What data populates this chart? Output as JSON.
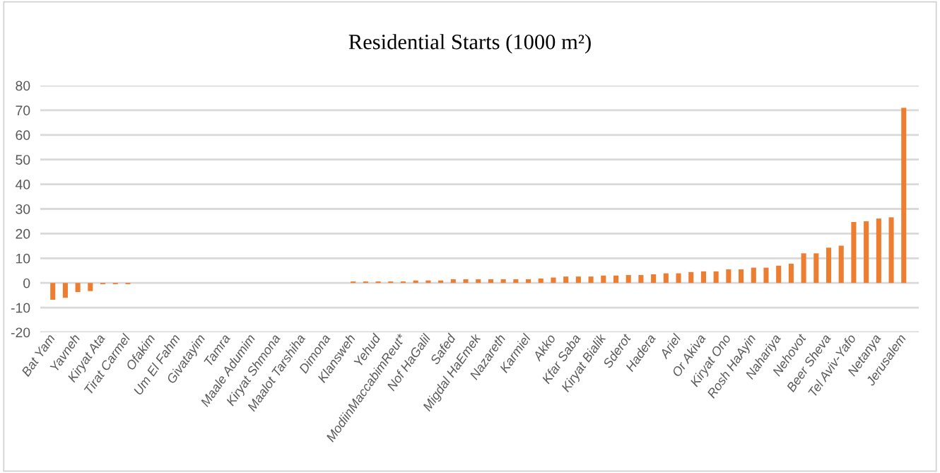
{
  "chart_data": {
    "type": "bar",
    "title": "Residential Starts (1000 m²)",
    "categories": [
      "Bat Yam",
      null,
      "Yavneh",
      null,
      "Kiryat Ata",
      null,
      "Tirat Carmel",
      null,
      "Ofakim",
      null,
      "Um El Fahm",
      null,
      "Givatayim",
      null,
      "Tamra",
      null,
      "Maale Adumim",
      null,
      "Kiryat Shmona",
      null,
      "Maalot Tarshiha",
      null,
      "Dimona",
      null,
      "Klansweh",
      null,
      "Yehud",
      null,
      "ModiinMaccabimReut*",
      null,
      "Nof HaGalil",
      null,
      "Safed",
      null,
      "Migdal HaEmek",
      null,
      "Nazareth",
      null,
      "Karmiel",
      null,
      "Akko",
      null,
      "Kfar Saba",
      null,
      "Kiryat Bialik",
      null,
      "Sderot",
      null,
      "Hadera",
      null,
      "Ariel",
      null,
      "Or Akiva",
      null,
      "Kiryat Ono",
      null,
      "Rosh HaAyin",
      null,
      "Nahariya",
      null,
      "Nehovot",
      null,
      "Beer Sheva",
      null,
      "Tel Aviv-Yafo",
      null,
      "Netanya",
      null,
      "Jerusalem"
    ],
    "values": [
      -6.8,
      -6.0,
      -3.7,
      -3.3,
      -0.5,
      -0.5,
      -0.5,
      0,
      0,
      0,
      0,
      0,
      0,
      0,
      0,
      0,
      0,
      0,
      0,
      0,
      0,
      0,
      0,
      0,
      0.6,
      0.6,
      0.6,
      0.6,
      0.6,
      1.0,
      1.0,
      1.0,
      1.5,
      1.5,
      1.5,
      1.5,
      1.5,
      1.5,
      1.5,
      1.8,
      2.2,
      2.6,
      2.6,
      2.6,
      3.0,
      3.0,
      3.2,
      3.2,
      3.5,
      3.9,
      3.9,
      4.4,
      4.7,
      4.7,
      5.5,
      5.5,
      6.2,
      6.2,
      7.0,
      7.8,
      12.0,
      12.0,
      14.3,
      15.1,
      24.7,
      25.0,
      26.1,
      26.6,
      71
    ],
    "color": "#ed7d31",
    "ylim": [
      -20,
      80
    ],
    "yticks": [
      -20,
      -10,
      0,
      10,
      20,
      30,
      40,
      50,
      60,
      70,
      80
    ],
    "grid": "y"
  }
}
